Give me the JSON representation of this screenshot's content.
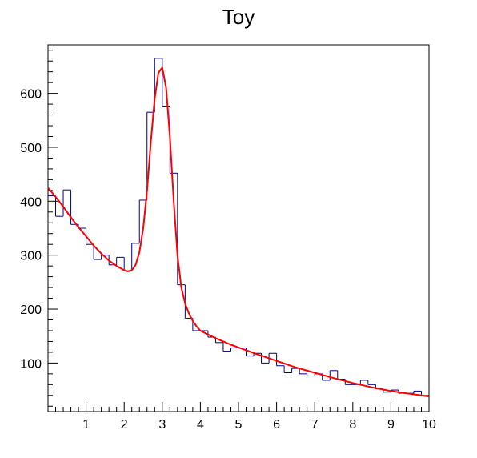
{
  "chart_data": {
    "type": "line",
    "title": "Toy",
    "xlabel": "",
    "ylabel": "",
    "xlim": [
      0,
      10
    ],
    "ylim": [
      10,
      690
    ],
    "grid": false,
    "legend": "none",
    "x_ticks": [
      1,
      2,
      3,
      4,
      5,
      6,
      7,
      8,
      9,
      10
    ],
    "y_ticks": [
      100,
      200,
      300,
      400,
      500,
      600
    ],
    "histogram": {
      "color": "#000080",
      "bin_edges": [
        0,
        0.2,
        0.4,
        0.6,
        0.8,
        1.0,
        1.2,
        1.4,
        1.6,
        1.8,
        2.0,
        2.2,
        2.4,
        2.6,
        2.8,
        3.0,
        3.2,
        3.4,
        3.6,
        3.8,
        4.0,
        4.2,
        4.4,
        4.6,
        4.8,
        5.0,
        5.2,
        5.4,
        5.6,
        5.8,
        6.0,
        6.2,
        6.4,
        6.6,
        6.8,
        7.0,
        7.2,
        7.4,
        7.6,
        7.8,
        8.0,
        8.2,
        8.4,
        8.6,
        8.8,
        9.0,
        9.2,
        9.4,
        9.6,
        9.8,
        10.0
      ],
      "counts": [
        410,
        372,
        421,
        357,
        350,
        320,
        292,
        300,
        282,
        296,
        271,
        322,
        402,
        565,
        665,
        575,
        452,
        245,
        183,
        160,
        160,
        148,
        138,
        122,
        128,
        128,
        113,
        118,
        100,
        118,
        95,
        82,
        90,
        80,
        76,
        80,
        68,
        86,
        70,
        60,
        60,
        68,
        60,
        52,
        46,
        50,
        44,
        44,
        48,
        40
      ]
    },
    "series": [
      {
        "color": "#ff0000",
        "x": [
          0.0,
          0.2,
          0.4,
          0.6,
          0.8,
          1.0,
          1.2,
          1.4,
          1.6,
          1.8,
          2.0,
          2.1,
          2.2,
          2.3,
          2.4,
          2.5,
          2.6,
          2.7,
          2.8,
          2.9,
          3.0,
          3.1,
          3.2,
          3.3,
          3.4,
          3.5,
          3.6,
          3.7,
          3.8,
          3.9,
          4.0,
          4.2,
          4.4,
          4.6,
          4.8,
          5.0,
          5.5,
          6.0,
          6.5,
          7.0,
          7.5,
          8.0,
          8.5,
          9.0,
          9.5,
          10.0
        ],
        "y": [
          425,
          408,
          390,
          370,
          352,
          335,
          318,
          303,
          290,
          280,
          272,
          270,
          272,
          282,
          305,
          350,
          420,
          510,
          590,
          638,
          648,
          610,
          520,
          400,
          300,
          240,
          210,
          192,
          178,
          168,
          160,
          153,
          146,
          140,
          134,
          129,
          116,
          104,
          92,
          82,
          72,
          63,
          55,
          48,
          43,
          38
        ]
      }
    ]
  }
}
